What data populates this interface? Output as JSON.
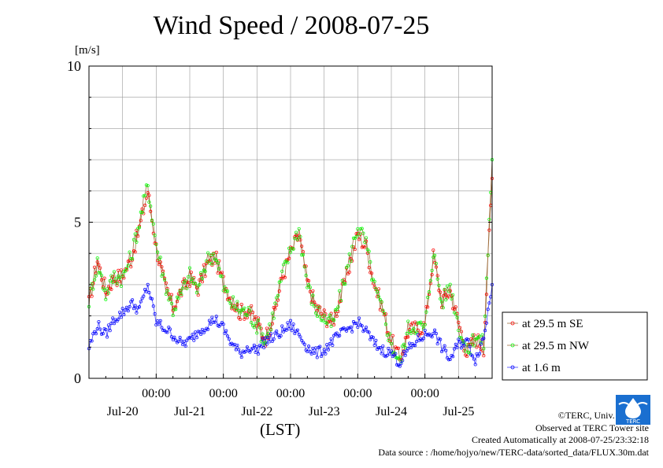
{
  "title": "Wind Speed / 2008-07-25",
  "chart_data": {
    "type": "line",
    "title": "Wind Speed / 2008-07-25",
    "ylabel": "[m/s]",
    "xlabel": "(LST)",
    "ylim": [
      0,
      10
    ],
    "yticks": [
      0,
      5,
      10
    ],
    "xlim": [
      "2008-07-19 00:00",
      "2008-07-25 00:00"
    ],
    "x_time_labels": [
      "00:00",
      "00:00",
      "00:00",
      "00:00",
      "00:00"
    ],
    "x_date_labels": [
      "Jul-20",
      "Jul-21",
      "Jul-22",
      "Jul-23",
      "Jul-24",
      "Jul-25"
    ],
    "grid": true,
    "legend_position": "right",
    "x_hours": [
      0,
      3,
      6,
      9,
      12,
      15,
      18,
      21,
      24,
      27,
      30,
      33,
      36,
      39,
      42,
      45,
      48,
      51,
      54,
      57,
      60,
      63,
      66,
      69,
      72,
      75,
      78,
      81,
      84,
      87,
      90,
      93,
      96,
      99,
      102,
      105,
      108,
      111,
      114,
      117,
      120,
      123,
      126,
      129,
      132,
      135,
      138,
      141,
      144
    ],
    "series": [
      {
        "name": "at 29.5 m SE",
        "color": "#ff0000",
        "values": [
          2.4,
          3.8,
          2.8,
          3.2,
          3.3,
          3.8,
          4.8,
          6.0,
          4.2,
          3.0,
          2.3,
          2.8,
          3.2,
          2.9,
          3.6,
          3.9,
          3.1,
          2.5,
          2.1,
          2.2,
          1.8,
          1.3,
          2.0,
          3.2,
          4.0,
          4.6,
          3.1,
          2.3,
          2.0,
          1.8,
          2.6,
          3.6,
          4.6,
          4.2,
          3.0,
          2.2,
          1.2,
          0.6,
          1.5,
          1.6,
          1.7,
          3.9,
          2.5,
          2.8,
          1.8,
          0.8,
          1.3,
          1.0,
          6.4
        ]
      },
      {
        "name": "at 29.5 m NW",
        "color": "#00ff00",
        "values": [
          2.5,
          3.7,
          2.7,
          3.3,
          3.2,
          3.9,
          5.0,
          6.2,
          4.3,
          3.1,
          2.2,
          2.7,
          3.3,
          2.8,
          3.8,
          4.0,
          2.9,
          2.4,
          2.2,
          2.1,
          1.7,
          1.2,
          2.1,
          3.3,
          4.1,
          4.8,
          3.0,
          2.2,
          1.9,
          1.7,
          2.7,
          3.8,
          4.9,
          4.3,
          2.9,
          2.1,
          1.1,
          0.5,
          1.6,
          1.7,
          1.6,
          4.1,
          2.4,
          3.0,
          1.7,
          0.8,
          1.4,
          1.1,
          7.0
        ]
      },
      {
        "name": "at 1.6 m",
        "color": "#0000ff",
        "values": [
          1.0,
          1.7,
          1.4,
          1.9,
          2.1,
          2.4,
          2.2,
          3.0,
          1.8,
          1.6,
          1.4,
          1.1,
          1.2,
          1.5,
          1.7,
          1.9,
          1.6,
          1.1,
          0.8,
          1.0,
          0.9,
          1.2,
          1.3,
          1.5,
          1.7,
          1.4,
          1.0,
          0.8,
          0.9,
          1.2,
          1.4,
          1.6,
          1.8,
          1.5,
          1.1,
          0.9,
          0.8,
          0.5,
          0.9,
          1.2,
          1.4,
          1.5,
          1.0,
          0.6,
          1.1,
          1.2,
          0.6,
          1.3,
          3.0
        ]
      }
    ]
  },
  "credits": {
    "line1": "©TERC, Univ. Tsukuba",
    "line2": "Observed at TERC Tower site",
    "line3": "Created Automatically at 2008-07-25/23:32:18",
    "line4": "Data source : /home/hojyo/new/TERC-data/sorted_data/FLUX.30m.dat"
  },
  "logo_text": "TERC",
  "colors": {
    "grid": "#9a9a9a",
    "axis": "#000000",
    "background": "#ffffff"
  }
}
